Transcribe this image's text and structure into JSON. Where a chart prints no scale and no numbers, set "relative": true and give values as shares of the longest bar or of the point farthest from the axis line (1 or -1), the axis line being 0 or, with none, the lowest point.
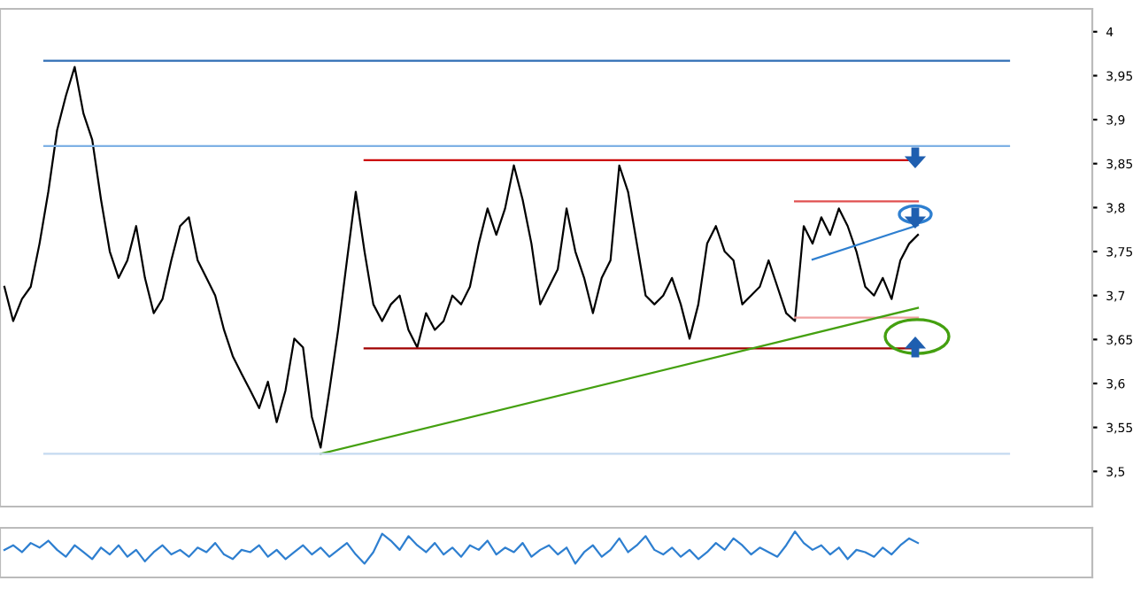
{
  "chart_data": [
    {
      "type": "line",
      "categories": [
        null,
        null,
        null,
        null,
        null,
        null,
        null,
        null,
        null,
        null,
        null,
        null,
        null,
        null,
        null,
        null,
        null,
        null,
        null,
        null,
        null,
        null,
        null,
        null,
        null,
        null,
        null,
        null,
        null,
        null,
        null,
        null,
        null,
        null,
        null,
        null,
        null,
        null,
        null,
        null,
        null,
        null,
        null,
        null,
        null,
        null,
        null,
        null,
        null,
        null,
        null,
        null,
        null,
        null,
        null,
        null,
        null,
        null,
        null,
        null,
        null,
        null,
        null,
        null,
        null,
        null,
        null,
        null,
        null,
        null,
        null,
        null,
        null,
        null,
        null,
        null,
        null,
        null,
        null,
        null,
        null,
        null,
        null,
        null,
        null,
        null,
        null,
        null,
        null,
        null,
        null,
        null,
        null,
        null,
        null,
        null,
        null,
        null,
        null,
        null,
        null,
        null,
        null,
        null,
        null
      ],
      "ylim": [
        3.46,
        4.026
      ],
      "yticks": [
        {
          "value": 4.0,
          "label": "4"
        },
        {
          "value": 3.95,
          "label": "3,95"
        },
        {
          "value": 3.9,
          "label": "3,9"
        },
        {
          "value": 3.85,
          "label": "3,85"
        },
        {
          "value": 3.8,
          "label": "3,8"
        },
        {
          "value": 3.75,
          "label": "3,75"
        },
        {
          "value": 3.7,
          "label": "3,7"
        },
        {
          "value": 3.65,
          "label": "3,65"
        },
        {
          "value": 3.6,
          "label": "3,6"
        },
        {
          "value": 3.55,
          "label": "3,55"
        },
        {
          "value": 3.5,
          "label": "3,5"
        }
      ],
      "tick_labels": "y",
      "grid": false,
      "ref_lines": [
        {
          "axis": "y",
          "value": 3.967,
          "color": "#2e6db4"
        },
        {
          "axis": "y",
          "value": 3.87,
          "color": "#7fb2e5"
        },
        {
          "axis": "y",
          "value": 3.52,
          "color": "#c5daf0"
        }
      ],
      "series": [
        {
          "color": "#000000",
          "values": [
            3.71,
            3.671,
            3.696,
            3.71,
            3.759,
            3.818,
            3.888,
            3.927,
            3.96,
            3.907,
            3.877,
            3.809,
            3.75,
            3.72,
            3.74,
            3.779,
            3.72,
            3.68,
            3.696,
            3.74,
            3.779,
            3.789,
            3.74,
            3.72,
            3.7,
            3.661,
            3.631,
            3.611,
            3.592,
            3.572,
            3.602,
            3.556,
            3.592,
            3.651,
            3.641,
            3.562,
            3.527,
            3.592,
            3.661,
            3.74,
            3.818,
            3.75,
            3.69,
            3.671,
            3.69,
            3.7,
            3.661,
            3.641,
            3.68,
            3.661,
            3.671,
            3.7,
            3.69,
            3.71,
            3.759,
            3.799,
            3.769,
            3.799,
            3.848,
            3.809,
            3.759,
            3.69,
            3.71,
            3.73,
            3.799,
            3.75,
            3.72,
            3.68,
            3.72,
            3.74,
            3.848,
            3.818,
            3.759,
            3.7,
            3.69,
            3.7,
            3.72,
            3.69,
            3.651,
            3.69,
            3.759,
            3.779,
            3.75,
            3.74,
            3.69,
            3.7,
            3.71,
            3.74,
            3.71,
            3.68,
            3.671,
            3.779,
            3.759,
            3.789,
            3.769,
            3.799,
            3.779,
            3.75,
            3.71,
            3.7,
            3.72,
            3.696,
            3.74,
            3.759,
            3.769
          ]
        },
        {
          "color": "#cc0000",
          "values": [
            null,
            null,
            null,
            null,
            null,
            null,
            null,
            null,
            null,
            null,
            null,
            null,
            null,
            null,
            null,
            null,
            null,
            null,
            null,
            null,
            null,
            null,
            null,
            null,
            null,
            null,
            null,
            null,
            null,
            null,
            null,
            null,
            null,
            null,
            null,
            null,
            null,
            null,
            null,
            null,
            null,
            3.854,
            null,
            null,
            null,
            null,
            null,
            null,
            null,
            null,
            null,
            null,
            null,
            null,
            null,
            null,
            null,
            null,
            null,
            null,
            null,
            null,
            null,
            null,
            null,
            null,
            null,
            null,
            null,
            null,
            null,
            null,
            null,
            null,
            null,
            null,
            null,
            null,
            null,
            null,
            null,
            null,
            null,
            null,
            null,
            null,
            null,
            null,
            null,
            null,
            null,
            null,
            null,
            null,
            null,
            null,
            null,
            null,
            null,
            null,
            null,
            null,
            null,
            null,
            3.854
          ]
        },
        {
          "color": "#e05050",
          "values": [
            null,
            null,
            null,
            null,
            null,
            null,
            null,
            null,
            null,
            null,
            null,
            null,
            null,
            null,
            null,
            null,
            null,
            null,
            null,
            null,
            null,
            null,
            null,
            null,
            null,
            null,
            null,
            null,
            null,
            null,
            null,
            null,
            null,
            null,
            null,
            null,
            null,
            null,
            null,
            null,
            null,
            null,
            null,
            null,
            null,
            null,
            null,
            null,
            null,
            null,
            null,
            null,
            null,
            null,
            null,
            null,
            null,
            null,
            null,
            null,
            null,
            null,
            null,
            null,
            null,
            null,
            null,
            null,
            null,
            null,
            null,
            null,
            null,
            null,
            null,
            null,
            null,
            null,
            null,
            null,
            null,
            null,
            null,
            null,
            null,
            null,
            null,
            null,
            null,
            null,
            3.807,
            null,
            null,
            null,
            null,
            null,
            null,
            null,
            null,
            null,
            null,
            null,
            null,
            null,
            3.807
          ]
        },
        {
          "color": "#f0a0a0",
          "values": [
            null,
            null,
            null,
            null,
            null,
            null,
            null,
            null,
            null,
            null,
            null,
            null,
            null,
            null,
            null,
            null,
            null,
            null,
            null,
            null,
            null,
            null,
            null,
            null,
            null,
            null,
            null,
            null,
            null,
            null,
            null,
            null,
            null,
            null,
            null,
            null,
            null,
            null,
            null,
            null,
            null,
            null,
            null,
            null,
            null,
            null,
            null,
            null,
            null,
            null,
            null,
            null,
            null,
            null,
            null,
            null,
            null,
            null,
            null,
            null,
            null,
            null,
            null,
            null,
            null,
            null,
            null,
            null,
            null,
            null,
            null,
            null,
            null,
            null,
            null,
            null,
            null,
            null,
            null,
            null,
            null,
            null,
            null,
            null,
            null,
            null,
            null,
            null,
            null,
            null,
            3.675,
            null,
            null,
            null,
            null,
            null,
            null,
            null,
            null,
            null,
            null,
            null,
            null,
            null,
            3.675
          ]
        },
        {
          "color": "#a00000",
          "values": [
            null,
            null,
            null,
            null,
            null,
            null,
            null,
            null,
            null,
            null,
            null,
            null,
            null,
            null,
            null,
            null,
            null,
            null,
            null,
            null,
            null,
            null,
            null,
            null,
            null,
            null,
            null,
            null,
            null,
            null,
            null,
            null,
            null,
            null,
            null,
            null,
            null,
            null,
            null,
            null,
            null,
            3.64,
            null,
            null,
            null,
            null,
            null,
            null,
            null,
            null,
            null,
            null,
            null,
            null,
            null,
            null,
            null,
            null,
            null,
            null,
            null,
            null,
            null,
            null,
            null,
            null,
            null,
            null,
            null,
            null,
            null,
            null,
            null,
            null,
            null,
            null,
            null,
            null,
            null,
            null,
            null,
            null,
            null,
            null,
            null,
            null,
            null,
            null,
            null,
            null,
            null,
            null,
            null,
            null,
            null,
            null,
            null,
            null,
            null,
            null,
            null,
            null,
            null,
            null,
            3.64
          ]
        },
        {
          "color": "#44a010",
          "values": [
            null,
            null,
            null,
            null,
            null,
            null,
            null,
            null,
            null,
            null,
            null,
            null,
            null,
            null,
            null,
            null,
            null,
            null,
            null,
            null,
            null,
            null,
            null,
            null,
            null,
            null,
            null,
            null,
            null,
            null,
            null,
            null,
            null,
            null,
            null,
            null,
            3.52,
            null,
            null,
            null,
            null,
            null,
            null,
            null,
            null,
            null,
            null,
            null,
            null,
            null,
            null,
            null,
            null,
            null,
            null,
            null,
            null,
            null,
            null,
            null,
            null,
            null,
            null,
            null,
            null,
            null,
            null,
            null,
            null,
            null,
            null,
            null,
            null,
            null,
            null,
            null,
            null,
            null,
            null,
            null,
            null,
            null,
            null,
            null,
            null,
            null,
            null,
            null,
            null,
            null,
            null,
            null,
            null,
            null,
            null,
            null,
            null,
            null,
            null,
            null,
            null,
            null,
            null,
            null,
            3.686
          ]
        },
        {
          "color": "#2e7fd0",
          "values": [
            null,
            null,
            null,
            null,
            null,
            null,
            null,
            null,
            null,
            null,
            null,
            null,
            null,
            null,
            null,
            null,
            null,
            null,
            null,
            null,
            null,
            null,
            null,
            null,
            null,
            null,
            null,
            null,
            null,
            null,
            null,
            null,
            null,
            null,
            null,
            null,
            null,
            null,
            null,
            null,
            null,
            null,
            null,
            null,
            null,
            null,
            null,
            null,
            null,
            null,
            null,
            null,
            null,
            null,
            null,
            null,
            null,
            null,
            null,
            null,
            null,
            null,
            null,
            null,
            null,
            null,
            null,
            null,
            null,
            null,
            null,
            null,
            null,
            null,
            null,
            null,
            null,
            null,
            null,
            null,
            null,
            null,
            null,
            null,
            null,
            null,
            null,
            null,
            null,
            null,
            null,
            null,
            3.741,
            null,
            null,
            null,
            null,
            null,
            null,
            null,
            null,
            null,
            null,
            null,
            3.78
          ]
        }
      ]
    },
    {
      "type": "line",
      "relative": true,
      "tick_labels": false,
      "grid": false,
      "categories": [
        null,
        null,
        null,
        null,
        null,
        null,
        null,
        null,
        null,
        null,
        null,
        null,
        null,
        null,
        null,
        null,
        null,
        null,
        null,
        null,
        null,
        null,
        null,
        null,
        null,
        null,
        null,
        null,
        null,
        null,
        null,
        null,
        null,
        null,
        null,
        null,
        null,
        null,
        null,
        null,
        null,
        null,
        null,
        null,
        null,
        null,
        null,
        null,
        null,
        null,
        null,
        null,
        null,
        null,
        null,
        null,
        null,
        null,
        null,
        null,
        null,
        null,
        null,
        null,
        null,
        null,
        null,
        null,
        null,
        null,
        null,
        null,
        null,
        null,
        null,
        null,
        null,
        null,
        null,
        null,
        null,
        null,
        null,
        null,
        null,
        null,
        null,
        null,
        null,
        null,
        null,
        null,
        null,
        null,
        null,
        null,
        null,
        null,
        null,
        null,
        null,
        null,
        null,
        null,
        null
      ],
      "series": [
        {
          "color": "#2e7fd0",
          "values": [
            0.6,
            0.7,
            0.55,
            0.75,
            0.65,
            0.8,
            0.6,
            0.45,
            0.7,
            0.55,
            0.4,
            0.65,
            0.5,
            0.7,
            0.45,
            0.6,
            0.35,
            0.55,
            0.7,
            0.5,
            0.6,
            0.45,
            0.65,
            0.55,
            0.75,
            0.5,
            0.4,
            0.6,
            0.55,
            0.7,
            0.45,
            0.6,
            0.4,
            0.55,
            0.7,
            0.5,
            0.65,
            0.45,
            0.6,
            0.75,
            0.5,
            0.3,
            0.55,
            0.95,
            0.8,
            0.6,
            0.9,
            0.7,
            0.55,
            0.75,
            0.5,
            0.65,
            0.45,
            0.7,
            0.6,
            0.8,
            0.5,
            0.65,
            0.55,
            0.75,
            0.45,
            0.6,
            0.7,
            0.5,
            0.65,
            0.3,
            0.55,
            0.7,
            0.45,
            0.6,
            0.85,
            0.55,
            0.7,
            0.9,
            0.6,
            0.5,
            0.65,
            0.45,
            0.6,
            0.4,
            0.55,
            0.75,
            0.6,
            0.85,
            0.7,
            0.5,
            0.65,
            0.55,
            0.45,
            0.7,
            1.0,
            0.75,
            0.6,
            0.7,
            0.5,
            0.65,
            0.4,
            0.6,
            0.55,
            0.45,
            0.65,
            0.5,
            0.7,
            0.85,
            0.75
          ]
        }
      ]
    }
  ]
}
